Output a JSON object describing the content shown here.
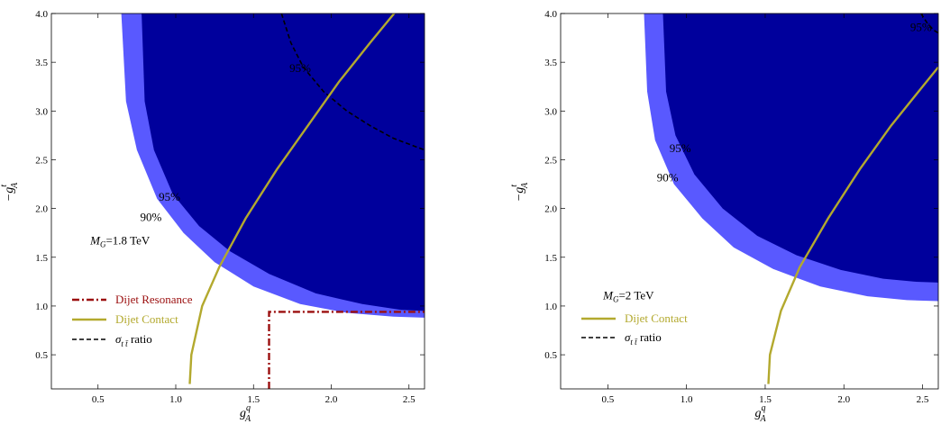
{
  "chart_data": [
    {
      "type": "contour",
      "xlim": [
        0.2,
        2.6
      ],
      "ylim": [
        0.15,
        4.0
      ],
      "xticks": [
        0.5,
        1.0,
        1.5,
        2.0,
        2.5
      ],
      "yticks": [
        0.5,
        1.0,
        1.5,
        2.0,
        2.5,
        3.0,
        3.5,
        4.0
      ],
      "xtick_labels": [
        "0.5",
        "1.0",
        "1.5",
        "2.0",
        "2.5"
      ],
      "ytick_labels": [
        "0.5",
        "1.0",
        "1.5",
        "2.0",
        "2.5",
        "3.0",
        "3.5",
        "4.0"
      ],
      "xlabel_base": "g",
      "xlabel_sup": "q",
      "xlabel_sub": "A",
      "ylabel_prefix": "−g",
      "ylabel_sup": "t",
      "ylabel_sub": "A",
      "mass_label": {
        "prefix": "M",
        "sub": "G",
        "text": "=1.8 TeV",
        "x": 0.45,
        "y": 1.63
      },
      "colors": {
        "inner": "#00009c",
        "outer": "#5959ff",
        "contact": "#b3a92e",
        "resonance": "#9b0f0f",
        "ratio": "#000000"
      },
      "region_90": [
        [
          0.65,
          4.0
        ],
        [
          0.68,
          3.1
        ],
        [
          0.75,
          2.6
        ],
        [
          0.88,
          2.1
        ],
        [
          1.05,
          1.75
        ],
        [
          1.25,
          1.45
        ],
        [
          1.5,
          1.2
        ],
        [
          1.8,
          1.02
        ],
        [
          2.1,
          0.93
        ],
        [
          2.4,
          0.89
        ],
        [
          2.6,
          0.88
        ],
        [
          2.6,
          4.0
        ]
      ],
      "region_95": [
        [
          0.78,
          4.0
        ],
        [
          0.8,
          3.1
        ],
        [
          0.86,
          2.6
        ],
        [
          0.98,
          2.15
        ],
        [
          1.15,
          1.82
        ],
        [
          1.35,
          1.56
        ],
        [
          1.6,
          1.33
        ],
        [
          1.9,
          1.13
        ],
        [
          2.2,
          1.02
        ],
        [
          2.45,
          0.96
        ],
        [
          2.6,
          0.95
        ],
        [
          2.6,
          4.0
        ]
      ],
      "contact_curve": [
        [
          1.09,
          0.2
        ],
        [
          1.1,
          0.5
        ],
        [
          1.17,
          1.0
        ],
        [
          1.28,
          1.4
        ],
        [
          1.45,
          1.9
        ],
        [
          1.65,
          2.4
        ],
        [
          1.85,
          2.85
        ],
        [
          2.05,
          3.3
        ],
        [
          2.25,
          3.7
        ],
        [
          2.43,
          4.05
        ]
      ],
      "resonance_line": [
        [
          1.6,
          0.15
        ],
        [
          1.6,
          0.94
        ],
        [
          2.6,
          0.94
        ]
      ],
      "ratio_curve": [
        [
          1.68,
          4.0
        ],
        [
          1.74,
          3.7
        ],
        [
          1.82,
          3.45
        ],
        [
          1.95,
          3.2
        ],
        [
          2.1,
          3.0
        ],
        [
          2.25,
          2.85
        ],
        [
          2.4,
          2.72
        ],
        [
          2.6,
          2.6
        ]
      ],
      "contour_labels": [
        {
          "text": "90%",
          "x": 0.84,
          "y": 1.87
        },
        {
          "text": "95%",
          "x": 0.96,
          "y": 2.08
        },
        {
          "text": "95%",
          "x": 1.8,
          "y": 3.4
        }
      ],
      "legend": [
        {
          "label": "Dijet Resonance",
          "style": "dashdot",
          "color": "#9b0f0f"
        },
        {
          "label": "Dijet Contact",
          "style": "solid",
          "color": "#b3a92e"
        },
        {
          "label": "ratio",
          "style": "dashed",
          "color": "#000000",
          "math": true
        }
      ]
    },
    {
      "type": "contour",
      "xlim": [
        0.2,
        2.6
      ],
      "ylim": [
        0.15,
        4.0
      ],
      "xticks": [
        0.5,
        1.0,
        1.5,
        2.0,
        2.5
      ],
      "yticks": [
        0.5,
        1.0,
        1.5,
        2.0,
        2.5,
        3.0,
        3.5,
        4.0
      ],
      "xtick_labels": [
        "0.5",
        "1.0",
        "1.5",
        "2.0",
        "2.5"
      ],
      "ytick_labels": [
        "0.5",
        "1.0",
        "1.5",
        "2.0",
        "2.5",
        "3.0",
        "3.5",
        "4.0"
      ],
      "xlabel_base": "g",
      "xlabel_sup": "q",
      "xlabel_sub": "A",
      "ylabel_prefix": "−g",
      "ylabel_sup": "t",
      "ylabel_sub": "A",
      "mass_label": {
        "prefix": "M",
        "sub": "G",
        "text": "=2 TeV",
        "x": 0.47,
        "y": 1.07
      },
      "colors": {
        "inner": "#00009c",
        "outer": "#5959ff",
        "contact": "#b3a92e",
        "ratio": "#000000"
      },
      "region_90": [
        [
          0.73,
          4.0
        ],
        [
          0.75,
          3.2
        ],
        [
          0.8,
          2.7
        ],
        [
          0.92,
          2.25
        ],
        [
          1.1,
          1.9
        ],
        [
          1.3,
          1.6
        ],
        [
          1.55,
          1.38
        ],
        [
          1.85,
          1.2
        ],
        [
          2.15,
          1.1
        ],
        [
          2.4,
          1.06
        ],
        [
          2.6,
          1.05
        ],
        [
          2.6,
          4.0
        ]
      ],
      "region_95": [
        [
          0.85,
          4.0
        ],
        [
          0.87,
          3.2
        ],
        [
          0.93,
          2.75
        ],
        [
          1.05,
          2.35
        ],
        [
          1.23,
          2.0
        ],
        [
          1.45,
          1.72
        ],
        [
          1.7,
          1.52
        ],
        [
          1.98,
          1.37
        ],
        [
          2.25,
          1.28
        ],
        [
          2.45,
          1.25
        ],
        [
          2.6,
          1.24
        ],
        [
          2.6,
          4.0
        ]
      ],
      "contact_curve": [
        [
          1.52,
          0.2
        ],
        [
          1.53,
          0.5
        ],
        [
          1.6,
          0.95
        ],
        [
          1.72,
          1.4
        ],
        [
          1.9,
          1.9
        ],
        [
          2.1,
          2.4
        ],
        [
          2.3,
          2.85
        ],
        [
          2.5,
          3.25
        ],
        [
          2.6,
          3.45
        ]
      ],
      "ratio_curve": [
        [
          2.49,
          4.0
        ],
        [
          2.53,
          3.9
        ],
        [
          2.57,
          3.83
        ],
        [
          2.6,
          3.8
        ]
      ],
      "contour_labels": [
        {
          "text": "90%",
          "x": 0.88,
          "y": 2.28
        },
        {
          "text": "95%",
          "x": 0.96,
          "y": 2.58
        },
        {
          "text": "95%",
          "x": 2.49,
          "y": 3.82
        }
      ],
      "legend": [
        {
          "label": "Dijet Contact",
          "style": "solid",
          "color": "#b3a92e"
        },
        {
          "label": "ratio",
          "style": "dashed",
          "color": "#000000",
          "math": true
        }
      ]
    }
  ]
}
